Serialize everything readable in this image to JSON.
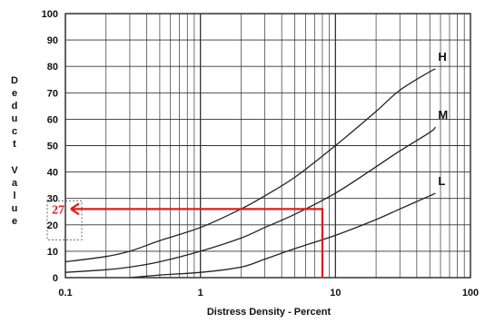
{
  "chart_data": {
    "type": "line",
    "x_scale": "log",
    "xlim": [
      0.1,
      100
    ],
    "ylim": [
      0,
      100
    ],
    "x_ticks": [
      "0.1",
      "1",
      "10",
      "100"
    ],
    "y_ticks": [
      "0",
      "10",
      "20",
      "30",
      "40",
      "50",
      "60",
      "70",
      "80",
      "90",
      "100"
    ],
    "xlabel": "Distress Density - Percent",
    "ylabel": "Deduct Value",
    "grid": true,
    "series": [
      {
        "name": "H",
        "points": [
          [
            0.1,
            6
          ],
          [
            0.2,
            8
          ],
          [
            0.3,
            10
          ],
          [
            0.5,
            14
          ],
          [
            1,
            19
          ],
          [
            2,
            26
          ],
          [
            3,
            31
          ],
          [
            5,
            38
          ],
          [
            10,
            50
          ],
          [
            20,
            63
          ],
          [
            30,
            71
          ],
          [
            50,
            78
          ],
          [
            55,
            79
          ]
        ]
      },
      {
        "name": "M",
        "points": [
          [
            0.1,
            2
          ],
          [
            0.2,
            3
          ],
          [
            0.3,
            4
          ],
          [
            0.5,
            6
          ],
          [
            1,
            10
          ],
          [
            2,
            15
          ],
          [
            3,
            19
          ],
          [
            5,
            24
          ],
          [
            10,
            32
          ],
          [
            20,
            42
          ],
          [
            30,
            48
          ],
          [
            50,
            55
          ],
          [
            55,
            57
          ]
        ]
      },
      {
        "name": "L",
        "points": [
          [
            0.3,
            0
          ],
          [
            0.5,
            1
          ],
          [
            1,
            2
          ],
          [
            2,
            4
          ],
          [
            3,
            7
          ],
          [
            5,
            11
          ],
          [
            10,
            16
          ],
          [
            20,
            22
          ],
          [
            30,
            26
          ],
          [
            50,
            31
          ],
          [
            55,
            32
          ]
        ]
      }
    ],
    "annotation": {
      "label": "27",
      "x": 8,
      "y": 26,
      "color": "#e01b1b"
    }
  }
}
